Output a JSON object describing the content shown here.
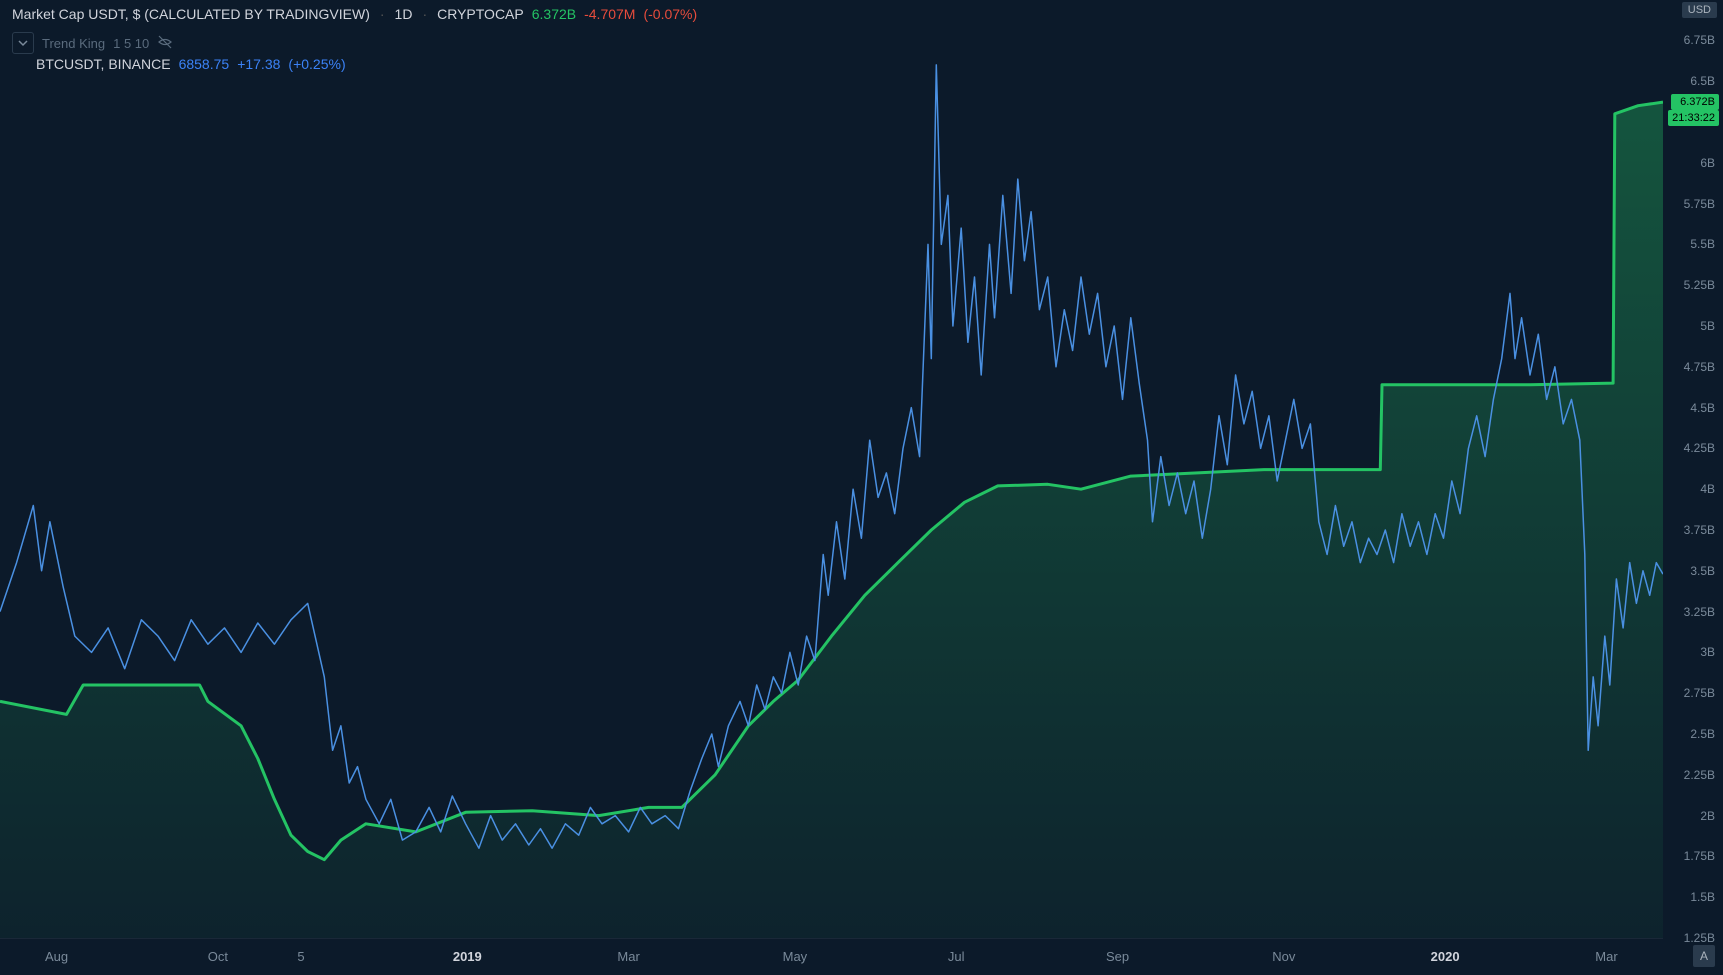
{
  "header": {
    "symbol": "Market Cap USDT, $ (CALCULATED BY TRADINGVIEW)",
    "interval": "1D",
    "exchange": "CRYPTOCAP",
    "last": "6.372B",
    "change": "-4.707M",
    "change_pct": "(-0.07%)"
  },
  "indicator": {
    "name": "Trend King",
    "params": "1 5 10"
  },
  "compare": {
    "symbol": "BTCUSDT, BINANCE",
    "last": "6858.75",
    "change": "+17.38",
    "change_pct": "(+0.25%)"
  },
  "axis_currency": "USD",
  "price_badge": {
    "value": "6.372B",
    "color": "#24c364"
  },
  "countdown_badge": {
    "value": "21:33:22",
    "color": "#24c364"
  },
  "y_axis": {
    "min": 1.25,
    "max": 6.875,
    "step": 0.25,
    "unit": "B",
    "ticks": [
      6.75,
      6.5,
      6.25,
      6,
      5.75,
      5.5,
      5.25,
      5,
      4.75,
      4.5,
      4.25,
      4,
      3.75,
      3.5,
      3.25,
      3,
      2.75,
      2.5,
      2.25,
      2,
      1.75,
      1.5,
      1.25
    ]
  },
  "x_axis": {
    "labels": [
      {
        "x": 0.034,
        "text": "Aug",
        "bold": false
      },
      {
        "x": 0.131,
        "text": "Oct",
        "bold": false
      },
      {
        "x": 0.181,
        "text": "5",
        "bold": false
      },
      {
        "x": 0.281,
        "text": "2019",
        "bold": true
      },
      {
        "x": 0.378,
        "text": "Mar",
        "bold": false
      },
      {
        "x": 0.478,
        "text": "May",
        "bold": false
      },
      {
        "x": 0.575,
        "text": "Jul",
        "bold": false
      },
      {
        "x": 0.672,
        "text": "Sep",
        "bold": false
      },
      {
        "x": 0.772,
        "text": "Nov",
        "bold": false
      },
      {
        "x": 0.869,
        "text": "2020",
        "bold": true
      },
      {
        "x": 0.966,
        "text": "Mar",
        "bold": false
      }
    ]
  },
  "colors": {
    "bg": "#0c1a2a",
    "green_line": "#24c364",
    "green_fill_top": "rgba(36,195,100,0.35)",
    "green_fill_bot": "rgba(36,195,100,0.05)",
    "blue_line": "#4a90e2",
    "text": "#d1d4dc",
    "muted": "#7a8a9a"
  },
  "green_series": {
    "comment": "USDT market cap in billions, x is 0..1 across time",
    "points": [
      [
        0.0,
        2.7
      ],
      [
        0.04,
        2.62
      ],
      [
        0.05,
        2.8
      ],
      [
        0.12,
        2.8
      ],
      [
        0.125,
        2.7
      ],
      [
        0.145,
        2.55
      ],
      [
        0.155,
        2.35
      ],
      [
        0.165,
        2.1
      ],
      [
        0.175,
        1.88
      ],
      [
        0.185,
        1.78
      ],
      [
        0.195,
        1.73
      ],
      [
        0.205,
        1.85
      ],
      [
        0.22,
        1.95
      ],
      [
        0.25,
        1.9
      ],
      [
        0.28,
        2.02
      ],
      [
        0.32,
        2.03
      ],
      [
        0.36,
        2.0
      ],
      [
        0.39,
        2.05
      ],
      [
        0.41,
        2.05
      ],
      [
        0.43,
        2.25
      ],
      [
        0.45,
        2.55
      ],
      [
        0.465,
        2.7
      ],
      [
        0.48,
        2.83
      ],
      [
        0.5,
        3.1
      ],
      [
        0.52,
        3.35
      ],
      [
        0.54,
        3.55
      ],
      [
        0.56,
        3.75
      ],
      [
        0.58,
        3.92
      ],
      [
        0.6,
        4.02
      ],
      [
        0.63,
        4.03
      ],
      [
        0.65,
        4.0
      ],
      [
        0.68,
        4.08
      ],
      [
        0.72,
        4.1
      ],
      [
        0.76,
        4.12
      ],
      [
        0.8,
        4.12
      ],
      [
        0.83,
        4.12
      ],
      [
        0.831,
        4.64
      ],
      [
        0.87,
        4.64
      ],
      [
        0.92,
        4.64
      ],
      [
        0.97,
        4.65
      ],
      [
        0.971,
        6.3
      ],
      [
        0.985,
        6.35
      ],
      [
        1.0,
        6.372
      ]
    ]
  },
  "blue_series": {
    "comment": "BTCUSDT mapped onto same y-scale approx; x 0..1",
    "points": [
      [
        0.0,
        3.25
      ],
      [
        0.01,
        3.55
      ],
      [
        0.02,
        3.9
      ],
      [
        0.025,
        3.5
      ],
      [
        0.03,
        3.8
      ],
      [
        0.038,
        3.4
      ],
      [
        0.045,
        3.1
      ],
      [
        0.055,
        3.0
      ],
      [
        0.065,
        3.15
      ],
      [
        0.075,
        2.9
      ],
      [
        0.085,
        3.2
      ],
      [
        0.095,
        3.1
      ],
      [
        0.105,
        2.95
      ],
      [
        0.115,
        3.2
      ],
      [
        0.125,
        3.05
      ],
      [
        0.135,
        3.15
      ],
      [
        0.145,
        3.0
      ],
      [
        0.155,
        3.18
      ],
      [
        0.165,
        3.05
      ],
      [
        0.175,
        3.2
      ],
      [
        0.185,
        3.3
      ],
      [
        0.195,
        2.85
      ],
      [
        0.2,
        2.4
      ],
      [
        0.205,
        2.55
      ],
      [
        0.21,
        2.2
      ],
      [
        0.215,
        2.3
      ],
      [
        0.22,
        2.1
      ],
      [
        0.228,
        1.95
      ],
      [
        0.235,
        2.1
      ],
      [
        0.242,
        1.85
      ],
      [
        0.25,
        1.9
      ],
      [
        0.258,
        2.05
      ],
      [
        0.265,
        1.9
      ],
      [
        0.272,
        2.12
      ],
      [
        0.28,
        1.95
      ],
      [
        0.288,
        1.8
      ],
      [
        0.295,
        2.0
      ],
      [
        0.302,
        1.85
      ],
      [
        0.31,
        1.95
      ],
      [
        0.318,
        1.82
      ],
      [
        0.325,
        1.92
      ],
      [
        0.332,
        1.8
      ],
      [
        0.34,
        1.95
      ],
      [
        0.348,
        1.88
      ],
      [
        0.355,
        2.05
      ],
      [
        0.362,
        1.95
      ],
      [
        0.37,
        2.0
      ],
      [
        0.378,
        1.9
      ],
      [
        0.385,
        2.05
      ],
      [
        0.392,
        1.95
      ],
      [
        0.4,
        2.0
      ],
      [
        0.408,
        1.92
      ],
      [
        0.415,
        2.15
      ],
      [
        0.422,
        2.35
      ],
      [
        0.428,
        2.5
      ],
      [
        0.432,
        2.3
      ],
      [
        0.438,
        2.55
      ],
      [
        0.445,
        2.7
      ],
      [
        0.45,
        2.55
      ],
      [
        0.455,
        2.8
      ],
      [
        0.46,
        2.65
      ],
      [
        0.465,
        2.85
      ],
      [
        0.47,
        2.75
      ],
      [
        0.475,
        3.0
      ],
      [
        0.48,
        2.8
      ],
      [
        0.485,
        3.1
      ],
      [
        0.49,
        2.95
      ],
      [
        0.495,
        3.6
      ],
      [
        0.498,
        3.35
      ],
      [
        0.503,
        3.8
      ],
      [
        0.508,
        3.45
      ],
      [
        0.513,
        4.0
      ],
      [
        0.518,
        3.7
      ],
      [
        0.523,
        4.3
      ],
      [
        0.528,
        3.95
      ],
      [
        0.533,
        4.1
      ],
      [
        0.538,
        3.85
      ],
      [
        0.543,
        4.25
      ],
      [
        0.548,
        4.5
      ],
      [
        0.553,
        4.2
      ],
      [
        0.558,
        5.5
      ],
      [
        0.56,
        4.8
      ],
      [
        0.563,
        6.6
      ],
      [
        0.566,
        5.5
      ],
      [
        0.57,
        5.8
      ],
      [
        0.573,
        5.0
      ],
      [
        0.578,
        5.6
      ],
      [
        0.582,
        4.9
      ],
      [
        0.586,
        5.3
      ],
      [
        0.59,
        4.7
      ],
      [
        0.595,
        5.5
      ],
      [
        0.598,
        5.05
      ],
      [
        0.603,
        5.8
      ],
      [
        0.608,
        5.2
      ],
      [
        0.612,
        5.9
      ],
      [
        0.616,
        5.4
      ],
      [
        0.62,
        5.7
      ],
      [
        0.625,
        5.1
      ],
      [
        0.63,
        5.3
      ],
      [
        0.635,
        4.75
      ],
      [
        0.64,
        5.1
      ],
      [
        0.645,
        4.85
      ],
      [
        0.65,
        5.3
      ],
      [
        0.655,
        4.95
      ],
      [
        0.66,
        5.2
      ],
      [
        0.665,
        4.75
      ],
      [
        0.67,
        5.0
      ],
      [
        0.675,
        4.55
      ],
      [
        0.68,
        5.05
      ],
      [
        0.685,
        4.65
      ],
      [
        0.69,
        4.3
      ],
      [
        0.693,
        3.8
      ],
      [
        0.698,
        4.2
      ],
      [
        0.703,
        3.9
      ],
      [
        0.708,
        4.1
      ],
      [
        0.713,
        3.85
      ],
      [
        0.718,
        4.05
      ],
      [
        0.723,
        3.7
      ],
      [
        0.728,
        4.0
      ],
      [
        0.733,
        4.45
      ],
      [
        0.738,
        4.15
      ],
      [
        0.743,
        4.7
      ],
      [
        0.748,
        4.4
      ],
      [
        0.753,
        4.6
      ],
      [
        0.758,
        4.25
      ],
      [
        0.763,
        4.45
      ],
      [
        0.768,
        4.05
      ],
      [
        0.773,
        4.3
      ],
      [
        0.778,
        4.55
      ],
      [
        0.783,
        4.25
      ],
      [
        0.788,
        4.4
      ],
      [
        0.793,
        3.8
      ],
      [
        0.798,
        3.6
      ],
      [
        0.803,
        3.9
      ],
      [
        0.808,
        3.65
      ],
      [
        0.813,
        3.8
      ],
      [
        0.818,
        3.55
      ],
      [
        0.823,
        3.7
      ],
      [
        0.828,
        3.6
      ],
      [
        0.833,
        3.75
      ],
      [
        0.838,
        3.55
      ],
      [
        0.843,
        3.85
      ],
      [
        0.848,
        3.65
      ],
      [
        0.853,
        3.8
      ],
      [
        0.858,
        3.6
      ],
      [
        0.863,
        3.85
      ],
      [
        0.868,
        3.7
      ],
      [
        0.873,
        4.05
      ],
      [
        0.878,
        3.85
      ],
      [
        0.883,
        4.25
      ],
      [
        0.888,
        4.45
      ],
      [
        0.893,
        4.2
      ],
      [
        0.898,
        4.55
      ],
      [
        0.903,
        4.8
      ],
      [
        0.908,
        5.2
      ],
      [
        0.911,
        4.8
      ],
      [
        0.915,
        5.05
      ],
      [
        0.92,
        4.7
      ],
      [
        0.925,
        4.95
      ],
      [
        0.93,
        4.55
      ],
      [
        0.935,
        4.75
      ],
      [
        0.94,
        4.4
      ],
      [
        0.945,
        4.55
      ],
      [
        0.95,
        4.3
      ],
      [
        0.953,
        3.6
      ],
      [
        0.955,
        2.4
      ],
      [
        0.958,
        2.85
      ],
      [
        0.961,
        2.55
      ],
      [
        0.965,
        3.1
      ],
      [
        0.968,
        2.8
      ],
      [
        0.972,
        3.45
      ],
      [
        0.976,
        3.15
      ],
      [
        0.98,
        3.55
      ],
      [
        0.984,
        3.3
      ],
      [
        0.988,
        3.5
      ],
      [
        0.992,
        3.35
      ],
      [
        0.996,
        3.55
      ],
      [
        1.0,
        3.48
      ]
    ]
  }
}
